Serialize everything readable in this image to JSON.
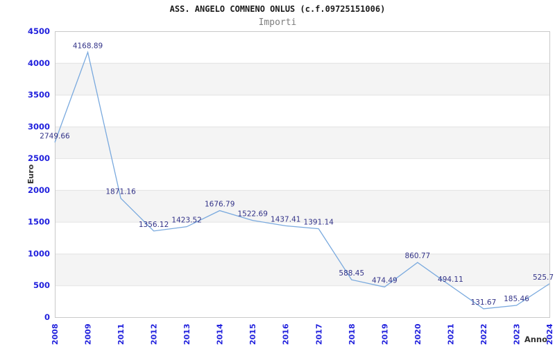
{
  "chart_data": {
    "type": "line",
    "title": "ASS. ANGELO COMNENO ONLUS (c.f.09725151006)",
    "subtitle": "Importi",
    "xlabel": "Anno",
    "ylabel": "Euro",
    "categories": [
      "2008",
      "2009",
      "2011",
      "2012",
      "2013",
      "2014",
      "2015",
      "2016",
      "2017",
      "2018",
      "2019",
      "2020",
      "2021",
      "2022",
      "2023",
      "2024"
    ],
    "values": [
      2749.66,
      4168.89,
      1871.16,
      1356.12,
      1423.52,
      1676.79,
      1522.69,
      1437.41,
      1391.14,
      588.45,
      474.49,
      860.77,
      494.11,
      131.67,
      185.46,
      525.7
    ],
    "point_labels": [
      "2749.66",
      "4168.89",
      "1871.16",
      "1356.12",
      "1423.52",
      "1676.79",
      "1522.69",
      "1437.41",
      "1391.14",
      "588.45",
      "474.49",
      "860.77",
      "494.11",
      "131.67",
      "185.46",
      "525.7"
    ],
    "ylim": [
      0,
      4500
    ],
    "ytick_step": 500,
    "ytick_labels": [
      "0",
      "500",
      "1000",
      "1500",
      "2000",
      "2500",
      "3000",
      "3500",
      "4000",
      "4500"
    ],
    "grid": "horizontal-only",
    "legend": "none",
    "markers": "none",
    "bands": "alternating-horizontal",
    "colors": {
      "line": "#79a9de",
      "point_label": "#333388",
      "tick_label": "#2222dd",
      "axis_title": "#333333",
      "title": "#1a1a1a",
      "subtitle": "#7d7d7d",
      "band": "#f4f4f4",
      "gridline": "#e2e2e2",
      "plot_border": "#c9c9c9",
      "background": "#ffffff"
    }
  }
}
